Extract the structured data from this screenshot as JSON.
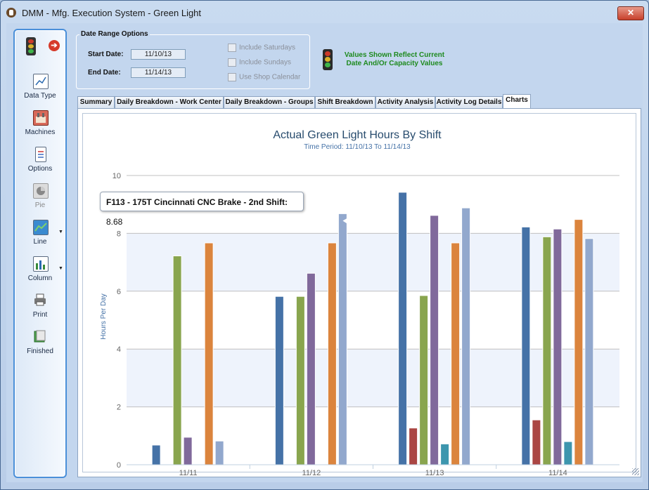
{
  "window": {
    "title": "DMM - Mfg. Execution System - Green Light",
    "close_label": "✕"
  },
  "sidebar": {
    "items": [
      {
        "label": "Data Type",
        "icon": "data-type-icon",
        "enabled": true,
        "dropdown": false
      },
      {
        "label": "Machines",
        "icon": "machines-icon",
        "enabled": true,
        "dropdown": false
      },
      {
        "label": "Options",
        "icon": "options-icon",
        "enabled": true,
        "dropdown": false
      },
      {
        "label": "Pie",
        "icon": "pie-chart-icon",
        "enabled": false,
        "dropdown": false
      },
      {
        "label": "Line",
        "icon": "line-chart-icon",
        "enabled": true,
        "dropdown": true
      },
      {
        "label": "Column",
        "icon": "column-chart-icon",
        "enabled": true,
        "dropdown": true
      },
      {
        "label": "Print",
        "icon": "printer-icon",
        "enabled": true,
        "dropdown": false
      },
      {
        "label": "Finished",
        "icon": "finished-icon",
        "enabled": true,
        "dropdown": false
      }
    ]
  },
  "date_range": {
    "title": "Date Range Options",
    "start_label": "Start Date:",
    "start_value": "11/10/13",
    "end_label": "End Date:",
    "end_value": "11/14/13",
    "checkboxes": [
      {
        "label": "Include Saturdays",
        "checked": false
      },
      {
        "label": "Include Sundays",
        "checked": false
      },
      {
        "label": "Use Shop Calendar",
        "checked": false
      }
    ]
  },
  "values_note": {
    "line1": "Values Shown Reflect Current",
    "line2": "Date And/Or Capacity Values"
  },
  "tabs": [
    {
      "label": "Summary",
      "active": false
    },
    {
      "label": "Daily Breakdown - Work Center",
      "active": false
    },
    {
      "label": "Daily Breakdown - Groups",
      "active": false
    },
    {
      "label": "Shift Breakdown",
      "active": false
    },
    {
      "label": "Activity Analysis",
      "active": false
    },
    {
      "label": "Activity Log Details",
      "active": false
    },
    {
      "label": "Charts",
      "active": true
    }
  ],
  "tooltip": {
    "label": "F113 - 175T Cincinnati CNC Brake - 2nd Shift:",
    "value": "8.68"
  },
  "chart_data": {
    "type": "bar",
    "title": "Actual Green Light Hours By Shift",
    "subtitle": "Time Period: 11/10/13 To 11/14/13",
    "ylabel": "Hours Per Day",
    "xlabel": "",
    "ylim": [
      0,
      10
    ],
    "yticks": [
      "0",
      "2",
      "4",
      "6",
      "8",
      "10"
    ],
    "categories": [
      "11/11",
      "11/12",
      "11/13",
      "11/14"
    ],
    "grid": true,
    "legend": "none",
    "series": [
      {
        "color": "#4572a7",
        "values": [
          0.68,
          5.82,
          9.42,
          8.22
        ]
      },
      {
        "color": "#aa4643",
        "values": [
          0,
          0,
          1.27,
          1.55
        ]
      },
      {
        "color": "#89a54e",
        "values": [
          7.22,
          5.82,
          5.85,
          7.88
        ]
      },
      {
        "color": "#80699b",
        "values": [
          0.95,
          6.62,
          8.62,
          8.15
        ]
      },
      {
        "color": "#3d96ae",
        "values": [
          0,
          0,
          0.72,
          0.8
        ]
      },
      {
        "color": "#db843d",
        "values": [
          7.67,
          7.67,
          7.67,
          8.48
        ]
      },
      {
        "color": "#92a8cd",
        "values": [
          0.82,
          8.68,
          8.88,
          7.82
        ]
      }
    ]
  }
}
